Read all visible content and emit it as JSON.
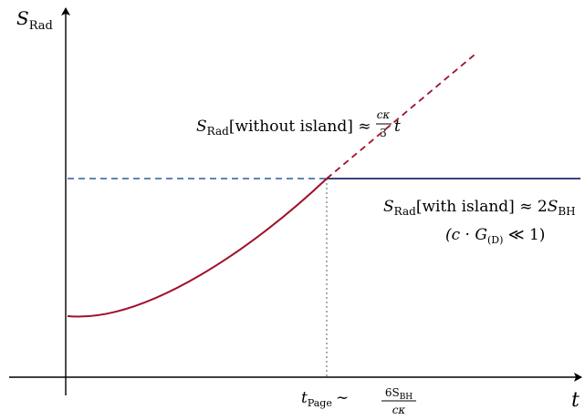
{
  "axes": {
    "y_label": {
      "symbol": "S",
      "subscript": "Rad"
    },
    "x_label": "t"
  },
  "curves": {
    "without_island": {
      "prefix_symbol": "S",
      "prefix_subscript": "Rad",
      "bracket_text": "[without island] ≈",
      "frac_num": "cκ",
      "frac_den": "3",
      "tail": "t",
      "color": "#a0102a"
    },
    "with_island": {
      "prefix_symbol": "S",
      "prefix_subscript": "Rad",
      "bracket_text": "[with island] ≈ 2",
      "tail_symbol": "S",
      "tail_subscript": "BH",
      "condition_a": "(c · G",
      "condition_sub": "(D)",
      "condition_b": " ≪ 1)",
      "color": "#1a2a6c",
      "dashed_color": "#4a74a8"
    }
  },
  "page_time": {
    "symbol": "t",
    "subscript": "Page",
    "relation": "∼",
    "frac_num_symbol": "6S",
    "frac_num_sub": "BH",
    "frac_den": "cκ",
    "guide_color": "#9a9a9a"
  }
}
